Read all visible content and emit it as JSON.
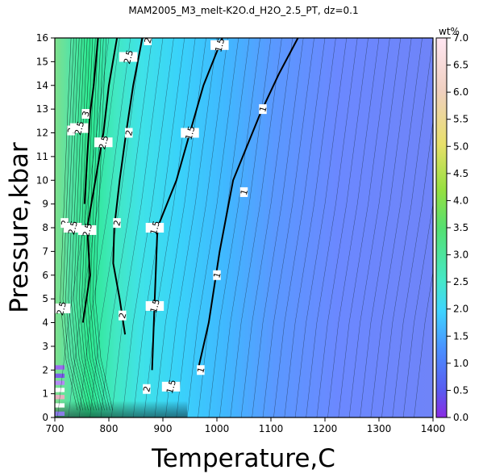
{
  "chart_data": {
    "type": "heatmap",
    "title": "MAM2005_M3_melt-K2O.d_H2O_2.5_PT, dz=0.1",
    "xlabel": "Temperature,C",
    "ylabel": "Pressure,kbar",
    "xlim": [
      700,
      1400
    ],
    "ylim": [
      0,
      16
    ],
    "x_ticks": [
      "700",
      "800",
      "900",
      "1000",
      "1100",
      "1200",
      "1300",
      "1400"
    ],
    "y_ticks": [
      "0",
      "1",
      "2",
      "3",
      "4",
      "5",
      "6",
      "7",
      "8",
      "9",
      "10",
      "11",
      "12",
      "13",
      "14",
      "15",
      "16"
    ],
    "colorbar": {
      "label": "wt%",
      "range": [
        0,
        7
      ],
      "ticks": [
        "0.0",
        "0.5",
        "1.0",
        "1.5",
        "2.0",
        "2.5",
        "3.0",
        "3.5",
        "4.0",
        "4.5",
        "5.0",
        "5.5",
        "6.0",
        "6.5",
        "7.0"
      ],
      "colors": [
        "#8a2be2",
        "#5a5af0",
        "#4a90ff",
        "#3fd4ff",
        "#45e8c8",
        "#55e070",
        "#96e040",
        "#e8e06a",
        "#f0d0c0",
        "#ffe6f2"
      ]
    },
    "contour_interval": 0.1,
    "labeled_contours": [
      {
        "value": "1",
        "points": [
          [
            965,
            2
          ],
          [
            985,
            4
          ],
          [
            1005,
            7
          ],
          [
            1030,
            10
          ],
          [
            1080,
            12.8
          ],
          [
            1115,
            14.5
          ],
          [
            1150,
            16
          ]
        ]
      },
      {
        "value": "1.5",
        "points": [
          [
            880,
            2
          ],
          [
            885,
            5
          ],
          [
            890,
            8
          ],
          [
            925,
            10
          ],
          [
            950,
            12
          ],
          [
            975,
            14
          ],
          [
            1010,
            16
          ]
        ]
      },
      {
        "value": "2",
        "points": [
          [
            830,
            3.5
          ],
          [
            820,
            5
          ],
          [
            808,
            6.5
          ],
          [
            810,
            8
          ],
          [
            820,
            10
          ],
          [
            832,
            12
          ],
          [
            845,
            14
          ],
          [
            862,
            16
          ]
        ]
      },
      {
        "value": "2.5",
        "points": [
          [
            752,
            4
          ],
          [
            765,
            6
          ],
          [
            760,
            8
          ],
          [
            775,
            10
          ],
          [
            790,
            12
          ],
          [
            800,
            14
          ],
          [
            815,
            16
          ]
        ]
      },
      {
        "value": "3",
        "points": [
          [
            755,
            9
          ],
          [
            760,
            11
          ],
          [
            765,
            12.8
          ],
          [
            772,
            14
          ],
          [
            780,
            16
          ]
        ]
      }
    ],
    "labels": [
      {
        "text": "1",
        "at": [
          1085,
          13
        ]
      },
      {
        "text": "1",
        "at": [
          1050,
          9.5
        ]
      },
      {
        "text": "1",
        "at": [
          1000,
          6
        ]
      },
      {
        "text": "1",
        "at": [
          970,
          2
        ]
      },
      {
        "text": "1.5",
        "at": [
          1005,
          15.7
        ]
      },
      {
        "text": "1.5",
        "at": [
          950,
          12
        ]
      },
      {
        "text": "1.5",
        "at": [
          885,
          8
        ]
      },
      {
        "text": "1.5",
        "at": [
          885,
          4.7
        ]
      },
      {
        "text": "1.5",
        "at": [
          915,
          1.3
        ]
      },
      {
        "text": "2",
        "at": [
          872,
          15.9
        ]
      },
      {
        "text": "2",
        "at": [
          837,
          12
        ]
      },
      {
        "text": "2",
        "at": [
          815,
          8.2
        ]
      },
      {
        "text": "2",
        "at": [
          825,
          4.3
        ]
      },
      {
        "text": "2",
        "at": [
          870,
          1.2
        ]
      },
      {
        "text": "2",
        "at": [
          730,
          12.1
        ]
      },
      {
        "text": "2",
        "at": [
          718,
          8.2
        ]
      },
      {
        "text": "2.5",
        "at": [
          836,
          15.2
        ]
      },
      {
        "text": "2.5",
        "at": [
          790,
          11.6
        ]
      },
      {
        "text": "2.5",
        "at": [
          760,
          7.9
        ]
      },
      {
        "text": "2.5",
        "at": [
          733,
          8
        ]
      },
      {
        "text": "2.5",
        "at": [
          745,
          12.2
        ]
      },
      {
        "text": "2.5",
        "at": [
          712,
          4.6
        ]
      },
      {
        "text": "3",
        "at": [
          757,
          12.8
        ]
      }
    ]
  }
}
